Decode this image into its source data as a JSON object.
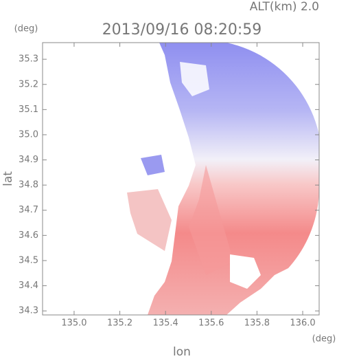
{
  "chart_data": {
    "type": "field",
    "title": "2013/09/16 08:20:59",
    "annotation": "ALT(km) 2.0",
    "x_label": "lon",
    "y_label": "lat",
    "x_unit": "(deg)",
    "y_unit": "(deg)",
    "xlim": [
      134.862,
      136.072
    ],
    "ylim": [
      34.284,
      35.366
    ],
    "xticks": [
      {
        "value": 135,
        "label": "135.0"
      },
      135.2,
      135.4,
      135.6,
      135.8,
      {
        "value": 136,
        "label": "136.0"
      }
    ],
    "yticks": [
      34.3,
      34.4,
      34.5,
      34.6,
      34.7,
      34.8,
      34.9,
      {
        "value": 35,
        "label": "35.0"
      },
      35.1,
      35.2,
      35.3
    ]
  }
}
